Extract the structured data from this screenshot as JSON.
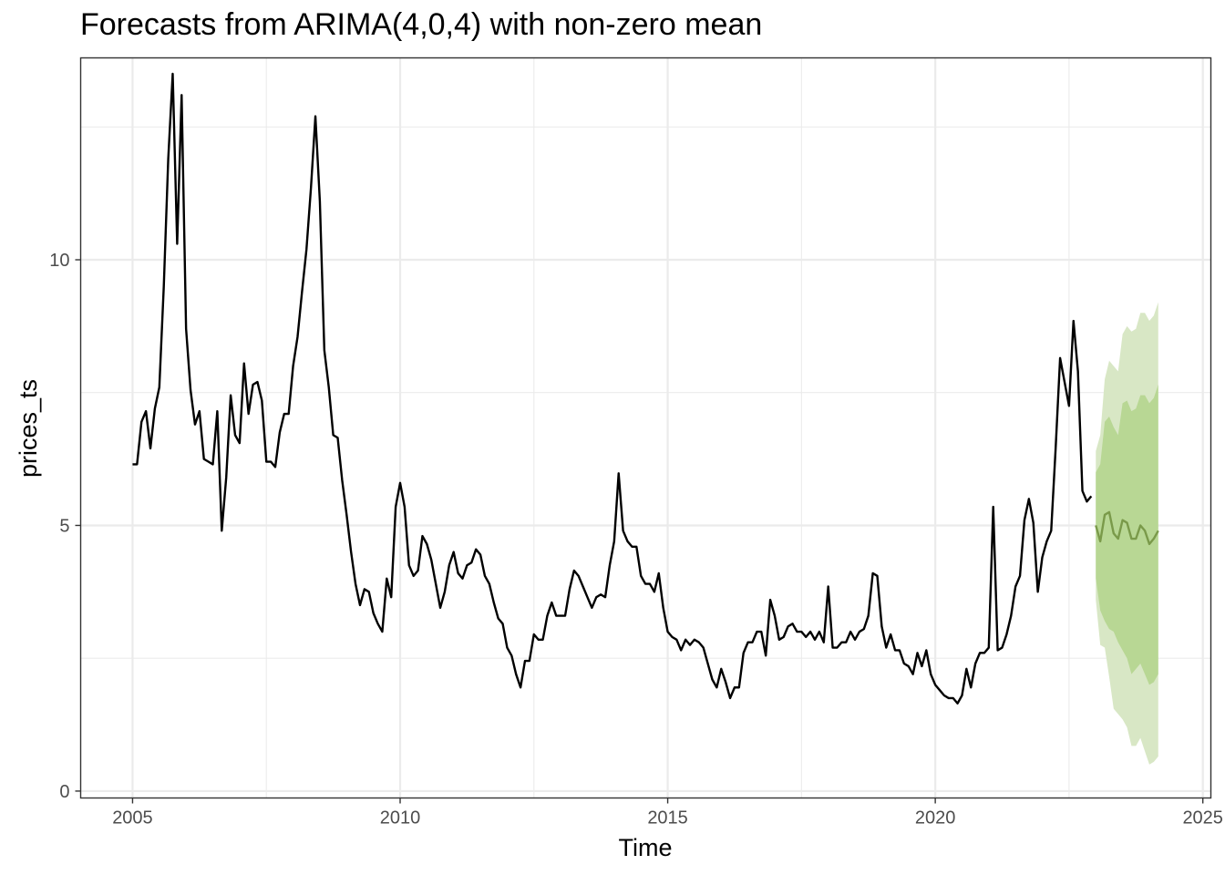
{
  "chart_data": {
    "type": "line",
    "title": "Forecasts from ARIMA(4,0,4) with non-zero mean",
    "xlabel": "Time",
    "ylabel": "prices_ts",
    "xlim": [
      2004.03,
      2025.15
    ],
    "ylim": [
      -0.13,
      13.8
    ],
    "x_ticks": [
      2005,
      2010,
      2015,
      2020,
      2025
    ],
    "x_tick_labels": [
      "2005",
      "2010",
      "2015",
      "2020",
      "2025"
    ],
    "y_ticks": [
      0,
      5,
      10
    ],
    "y_tick_labels": [
      "0",
      "5",
      "10"
    ],
    "grid": true,
    "colors": {
      "observed": "#000000",
      "forecast_mean": "#7a9a4a",
      "band_80": "#b8d794",
      "band_95": "#d8e7c5",
      "grid": "#ebebeb",
      "panel_border": "#333333"
    },
    "series": [
      {
        "role": "observed",
        "start": 2005.0,
        "step": 0.08333,
        "values": [
          6.15,
          6.15,
          6.95,
          7.15,
          6.45,
          7.2,
          7.6,
          9.5,
          11.9,
          13.5,
          10.3,
          13.1,
          8.7,
          7.55,
          6.9,
          7.15,
          6.25,
          6.2,
          6.15,
          7.15,
          4.9,
          5.9,
          7.45,
          6.7,
          6.55,
          8.05,
          7.1,
          7.65,
          7.7,
          7.35,
          6.2,
          6.2,
          6.1,
          6.75,
          7.1,
          7.1,
          8.0,
          8.55,
          9.4,
          10.2,
          11.35,
          12.7,
          11.1,
          8.3,
          7.6,
          6.7,
          6.65,
          5.85,
          5.2,
          4.5,
          3.9,
          3.5,
          3.8,
          3.75,
          3.35,
          3.15,
          3.0,
          4.0,
          3.65,
          5.35,
          5.8,
          5.35,
          4.25,
          4.05,
          4.15,
          4.8,
          4.65,
          4.35,
          3.9,
          3.45,
          3.75,
          4.25,
          4.5,
          4.1,
          4.0,
          4.25,
          4.3,
          4.55,
          4.45,
          4.05,
          3.9,
          3.55,
          3.25,
          3.15,
          2.7,
          2.55,
          2.2,
          1.95,
          2.45,
          2.45,
          2.95,
          2.85,
          2.85,
          3.3,
          3.55,
          3.3,
          3.3,
          3.3,
          3.8,
          4.15,
          4.05,
          3.85,
          3.65,
          3.45,
          3.65,
          3.7,
          3.65,
          4.25,
          4.7,
          5.98,
          4.9,
          4.7,
          4.6,
          4.6,
          4.05,
          3.9,
          3.9,
          3.75,
          4.1,
          3.45,
          3.0,
          2.9,
          2.85,
          2.65,
          2.85,
          2.75,
          2.85,
          2.8,
          2.7,
          2.4,
          2.1,
          1.95,
          2.3,
          2.05,
          1.75,
          1.95,
          1.95,
          2.6,
          2.8,
          2.8,
          3.0,
          3.0,
          2.55,
          3.6,
          3.3,
          2.85,
          2.9,
          3.1,
          3.15,
          3.0,
          3.0,
          2.9,
          3.0,
          2.85,
          3.0,
          2.8,
          3.85,
          2.7,
          2.7,
          2.8,
          2.8,
          3.0,
          2.85,
          3.0,
          3.05,
          3.3,
          4.1,
          4.05,
          3.1,
          2.7,
          2.95,
          2.65,
          2.65,
          2.4,
          2.35,
          2.2,
          2.6,
          2.35,
          2.65,
          2.2,
          2.0,
          1.9,
          1.8,
          1.75,
          1.75,
          1.65,
          1.8,
          2.3,
          1.95,
          2.4,
          2.6,
          2.6,
          2.7,
          5.35,
          2.65,
          2.7,
          2.95,
          3.3,
          3.85,
          4.05,
          5.1,
          5.5,
          5.05,
          3.75,
          4.4,
          4.7,
          4.9,
          6.45,
          8.15,
          7.7,
          7.25,
          8.85,
          7.9,
          5.65,
          5.45,
          5.55
        ]
      },
      {
        "role": "forecast_mean",
        "start": 2023.0,
        "step": 0.08333,
        "values": [
          5.0,
          4.7,
          5.2,
          5.25,
          4.85,
          4.75,
          5.1,
          5.05,
          4.75,
          4.75,
          5.0,
          4.9,
          4.65,
          4.75,
          4.9
        ],
        "lo80": [
          4.0,
          3.4,
          3.2,
          3.05,
          3.0,
          2.8,
          2.65,
          2.5,
          2.2,
          2.3,
          2.4,
          2.2,
          2.0,
          2.05,
          2.2
        ],
        "hi80": [
          6.0,
          6.15,
          6.95,
          7.05,
          6.85,
          6.7,
          7.3,
          7.35,
          7.15,
          7.2,
          7.45,
          7.45,
          7.3,
          7.4,
          7.65
        ],
        "lo95": [
          3.6,
          2.75,
          2.7,
          2.15,
          1.55,
          1.45,
          1.35,
          1.2,
          0.85,
          0.85,
          1.0,
          0.75,
          0.5,
          0.55,
          0.65
        ],
        "hi95": [
          6.4,
          6.7,
          7.75,
          8.1,
          8.0,
          7.9,
          8.6,
          8.75,
          8.65,
          8.7,
          9.0,
          9.0,
          8.85,
          8.95,
          9.2
        ]
      }
    ]
  }
}
